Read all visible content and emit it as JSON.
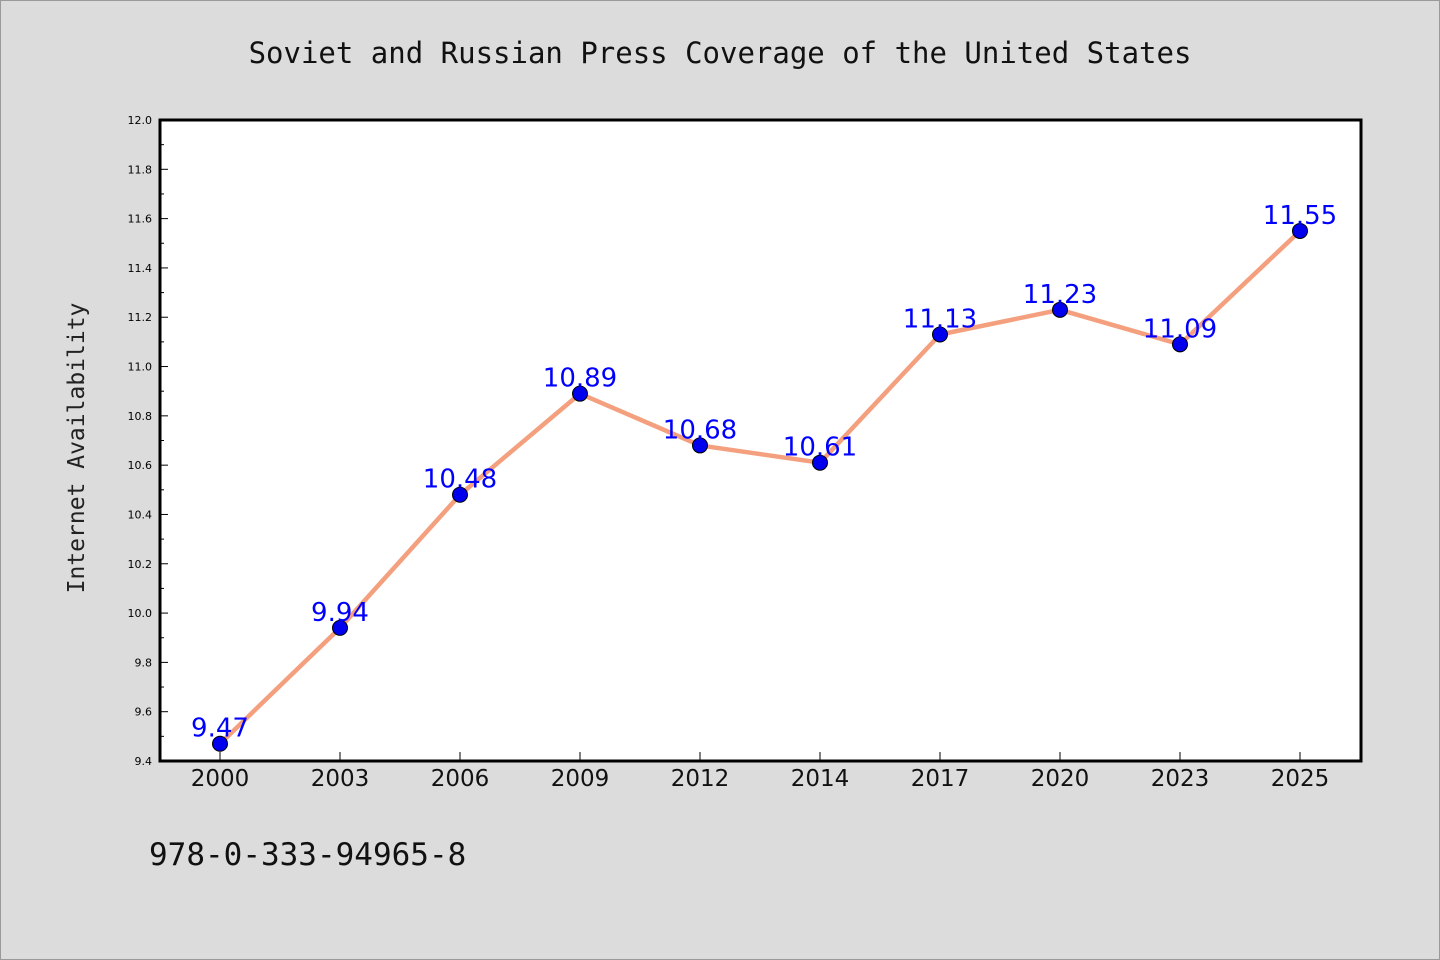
{
  "chart_data": {
    "type": "line",
    "title": "Soviet and Russian Press Coverage of the United States",
    "xlabel": "",
    "ylabel": "Internet Availability",
    "categories": [
      "2000",
      "2003",
      "2006",
      "2009",
      "2012",
      "2014",
      "2017",
      "2020",
      "2023",
      "2025"
    ],
    "series": [
      {
        "values": [
          9.47,
          9.94,
          10.48,
          10.89,
          10.68,
          10.61,
          11.13,
          11.23,
          11.09,
          11.55
        ]
      }
    ],
    "data_labels": [
      "9.47",
      "9.94",
      "10.48",
      "10.89",
      "10.68",
      "10.61",
      "11.13",
      "11.23",
      "11.09",
      "11.55"
    ],
    "ylim": [
      9.4,
      12.0
    ],
    "y_ticks": [
      "9.4",
      "9.6",
      "9.8",
      "10.0",
      "10.2",
      "10.4",
      "10.6",
      "10.8",
      "11.0",
      "11.2",
      "11.4",
      "11.6",
      "11.8",
      "12.0"
    ],
    "grid": false,
    "legend": "none",
    "colors": {
      "line": "#f4a07e",
      "marker": "#0000ee",
      "labels": "#0000ff",
      "background": "#dcdcdc",
      "plot_background": "#ffffff"
    }
  },
  "footer": {
    "text": "978-0-333-94965-8"
  }
}
